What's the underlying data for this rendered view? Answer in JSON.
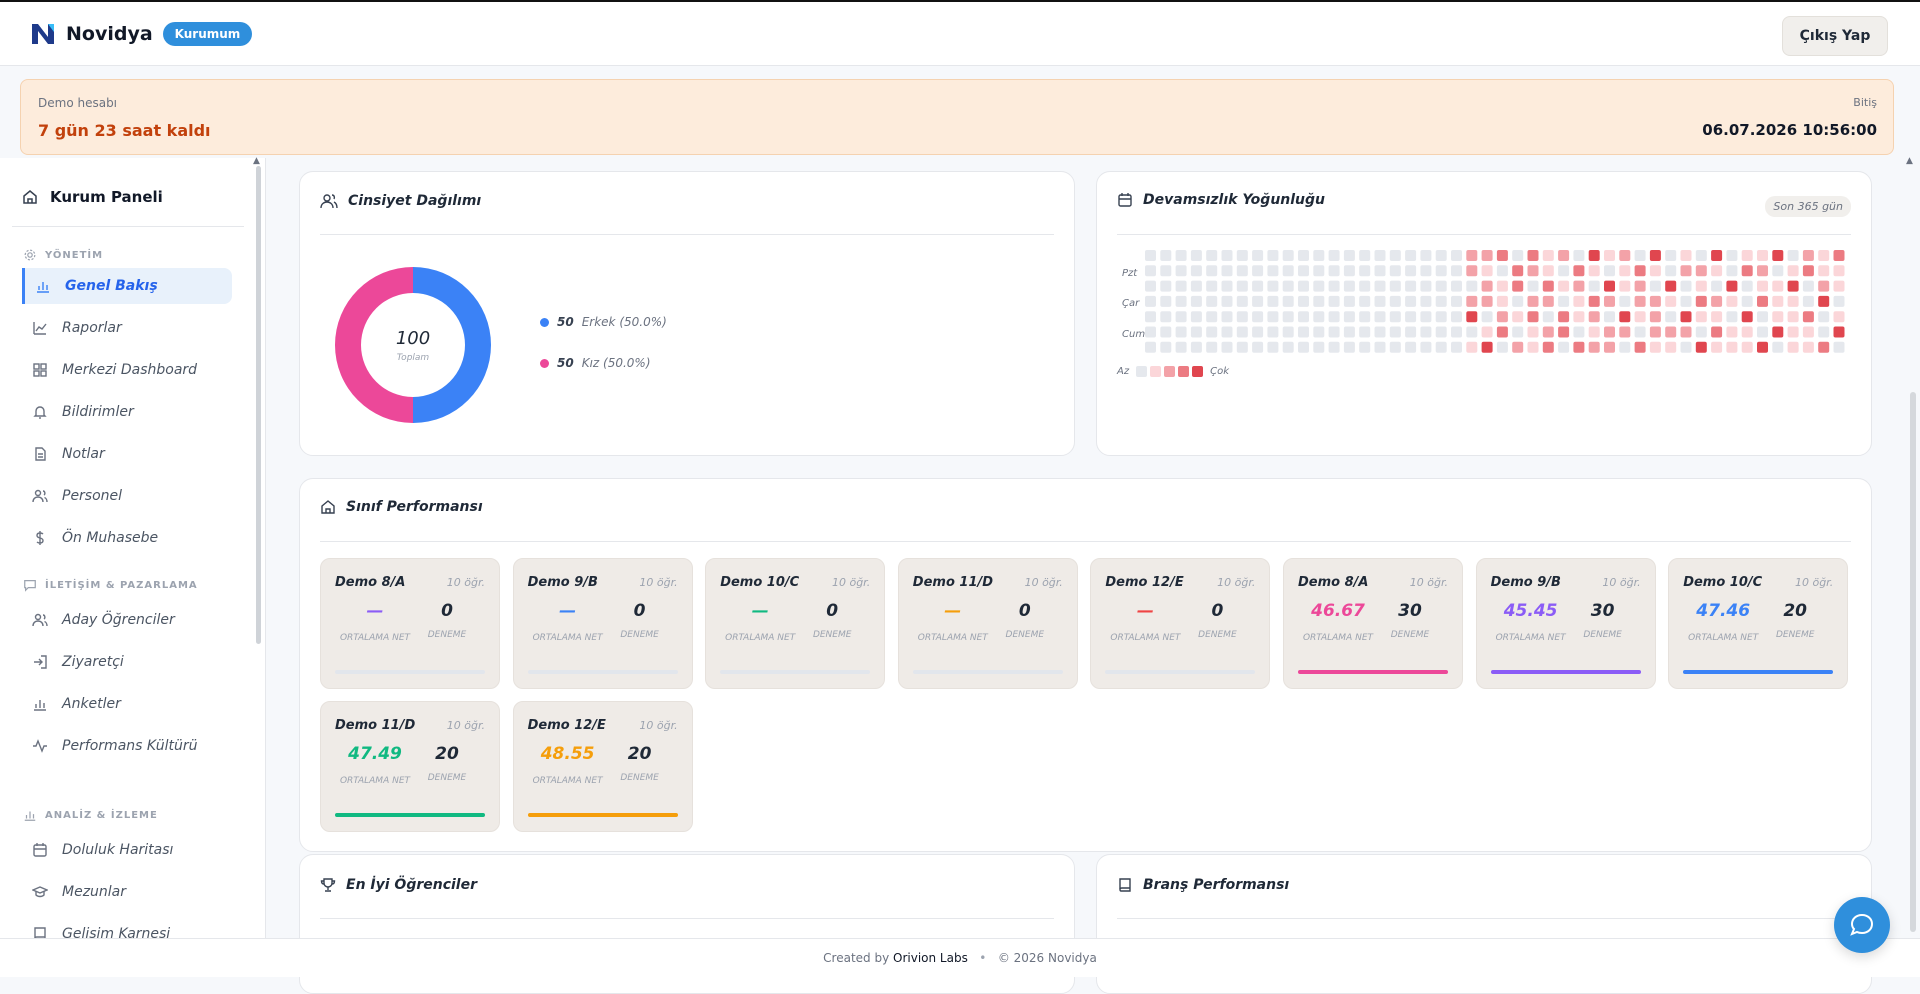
{
  "app": {
    "name": "Novidya",
    "badge": "Kurumum",
    "logout_label": "Çıkış Yap"
  },
  "demo": {
    "label": "Demo hesabı",
    "remaining": "7 gün 23 saat kaldı",
    "end_label": "Bitiş",
    "end_date": "06.07.2026 10:56:00"
  },
  "sidebar": {
    "panel_title": "Kurum Paneli",
    "sections": [
      {
        "title": "YÖNETİM",
        "items": [
          {
            "label": "Genel Bakış",
            "icon": "bar-chart-icon",
            "active": true
          },
          {
            "label": "Raporlar",
            "icon": "line-chart-icon"
          },
          {
            "label": "Merkezi Dashboard",
            "icon": "grid-icon"
          },
          {
            "label": "Bildirimler",
            "icon": "bell-icon"
          },
          {
            "label": "Notlar",
            "icon": "document-icon"
          },
          {
            "label": "Personel",
            "icon": "users-icon"
          },
          {
            "label": "Ön Muhasebe",
            "icon": "dollar-icon"
          }
        ]
      },
      {
        "title": "İLETİŞİM & PAZARLAMA",
        "items": [
          {
            "label": "Aday Öğrenciler",
            "icon": "users-icon"
          },
          {
            "label": "Ziyaretçi",
            "icon": "login-icon"
          },
          {
            "label": "Anketler",
            "icon": "bar-chart-icon"
          },
          {
            "label": "Performans Kültürü",
            "icon": "activity-icon"
          }
        ]
      },
      {
        "title": "ANALİZ & İZLEME",
        "items": [
          {
            "label": "Doluluk Haritası",
            "icon": "calendar-icon"
          },
          {
            "label": "Mezunlar",
            "icon": "graduation-cap-icon"
          },
          {
            "label": "Gelişim Karnesi",
            "icon": "book-icon"
          }
        ]
      }
    ]
  },
  "gender": {
    "title": "Cinsiyet Dağılımı",
    "total": "100",
    "total_label": "Toplam",
    "items": [
      {
        "count": "50",
        "label": "Erkek (50.0%)",
        "value": 50,
        "color": "#3b82f6"
      },
      {
        "count": "50",
        "label": "Kız (50.0%)",
        "value": 50,
        "color": "#ec4899"
      }
    ]
  },
  "attendance": {
    "title": "Devamsızlık Yoğunluğu",
    "period": "Son 365 gün",
    "days": [
      "Pzt",
      "Çar",
      "Cum"
    ],
    "legend_low": "Az",
    "legend_high": "Çok",
    "colors": [
      "#e5e8ed",
      "#fbd6d9",
      "#f3a2a8",
      "#ec7b82",
      "#e0464f"
    ]
  },
  "class_performance": {
    "title": "Sınıf Performansı",
    "avg_label": "ORTALAMA NET",
    "trial_label": "DENEME",
    "classes": [
      {
        "name": "Demo 8/A",
        "students": "10 öğr.",
        "avg": "—",
        "trials": "0",
        "color": "#8b5cf6",
        "filled": false
      },
      {
        "name": "Demo 9/B",
        "students": "10 öğr.",
        "avg": "—",
        "trials": "0",
        "color": "#3b82f6",
        "filled": false
      },
      {
        "name": "Demo 10/C",
        "students": "10 öğr.",
        "avg": "—",
        "trials": "0",
        "color": "#10b981",
        "filled": false
      },
      {
        "name": "Demo 11/D",
        "students": "10 öğr.",
        "avg": "—",
        "trials": "0",
        "color": "#f59e0b",
        "filled": false
      },
      {
        "name": "Demo 12/E",
        "students": "10 öğr.",
        "avg": "—",
        "trials": "0",
        "color": "#ef4444",
        "filled": false
      },
      {
        "name": "Demo 8/A",
        "students": "10 öğr.",
        "avg": "46.67",
        "trials": "30",
        "color": "#ec4899",
        "filled": true
      },
      {
        "name": "Demo 9/B",
        "students": "10 öğr.",
        "avg": "45.45",
        "trials": "30",
        "color": "#8b5cf6",
        "filled": true
      },
      {
        "name": "Demo 10/C",
        "students": "10 öğr.",
        "avg": "47.46",
        "trials": "20",
        "color": "#3b82f6",
        "filled": true
      },
      {
        "name": "Demo 11/D",
        "students": "10 öğr.",
        "avg": "47.49",
        "trials": "20",
        "color": "#10b981",
        "filled": true
      },
      {
        "name": "Demo 12/E",
        "students": "10 öğr.",
        "avg": "48.55",
        "trials": "20",
        "color": "#f59e0b",
        "filled": true
      }
    ]
  },
  "top_students": {
    "title": "En İyi Öğrenciler"
  },
  "branch_performance": {
    "title": "Branş Performansı"
  },
  "footer": {
    "created_by": "Created by",
    "company": "Orivion Labs",
    "separator": "•",
    "copyright": "© 2026 Novidya"
  }
}
